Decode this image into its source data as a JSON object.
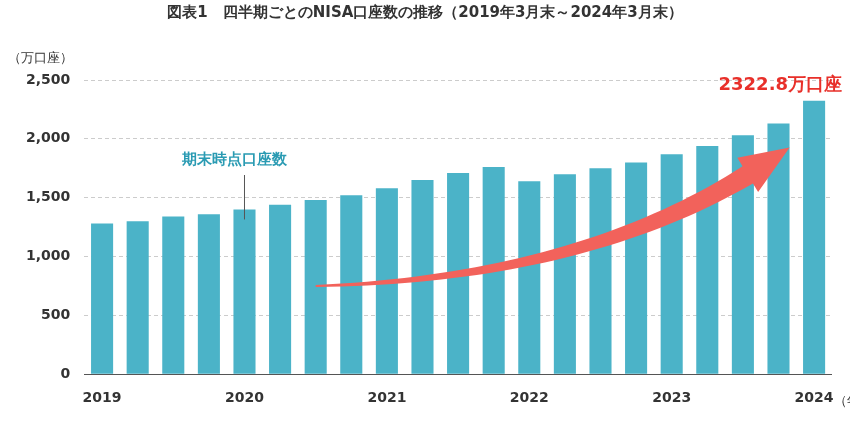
{
  "chart_data": {
    "type": "bar",
    "title": "図表1　四半期ごとのNISA口座数の推移（2019年3月末～2024年3月末）",
    "y_label": "（万口座）",
    "x_label": "（年）",
    "categories": [
      "2019",
      null,
      null,
      null,
      "2020",
      null,
      null,
      null,
      "2021",
      null,
      null,
      null,
      "2022",
      null,
      null,
      null,
      "2023",
      null,
      null,
      null,
      "2024"
    ],
    "values": [
      1280,
      1300,
      1340,
      1360,
      1400,
      1440,
      1480,
      1520,
      1580,
      1650,
      1710,
      1760,
      1640,
      1700,
      1750,
      1800,
      1870,
      1940,
      2030,
      2130,
      2322.8
    ],
    "color": "#4bb3c8",
    "ylim": [
      0,
      2500
    ],
    "yticks": [
      0,
      500,
      {
        "value": 1000,
        "label": "1,000"
      },
      {
        "value": 1500,
        "label": "1,500"
      },
      {
        "value": 2000,
        "label": "2,000"
      },
      {
        "value": 2500,
        "label": "2,500"
      }
    ],
    "grid": true,
    "annotations": [
      {
        "text": "期末時点口座数"
      },
      {
        "text": "2322.8万口座"
      }
    ]
  }
}
